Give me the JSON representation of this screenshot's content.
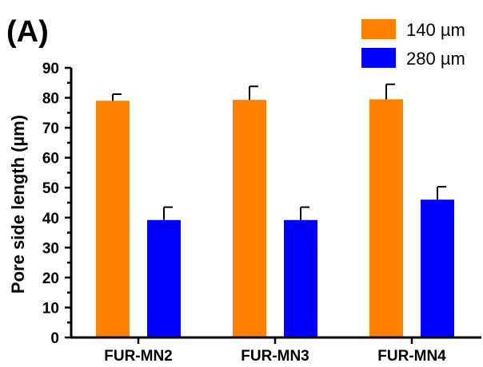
{
  "panel_label": "(A)",
  "chart_data": {
    "type": "bar",
    "ylabel": "Pore side length (µm)",
    "xlabel": "",
    "ylim": [
      0,
      90
    ],
    "yticks": [
      0,
      10,
      20,
      30,
      40,
      50,
      60,
      70,
      80,
      90
    ],
    "y_tick_labels": [
      "0",
      "10",
      "20",
      "30",
      "40",
      "50",
      "60",
      "70",
      "80",
      "90"
    ],
    "y_minor_step": 5,
    "categories": [
      "FUR-MN2",
      "FUR-MN3",
      "FUR-MN4"
    ],
    "series": [
      {
        "name": "140 µm",
        "color": "#FF8000",
        "values": [
          79,
          79.3,
          79.5
        ],
        "errors": [
          2.2,
          4.5,
          5.0
        ]
      },
      {
        "name": "280 µm",
        "color": "#0000FF",
        "values": [
          39.2,
          39.2,
          46
        ],
        "errors": [
          4.3,
          4.3,
          4.3
        ]
      }
    ],
    "legend_position": "top-right",
    "grid": false,
    "error_bars": "upper only"
  }
}
